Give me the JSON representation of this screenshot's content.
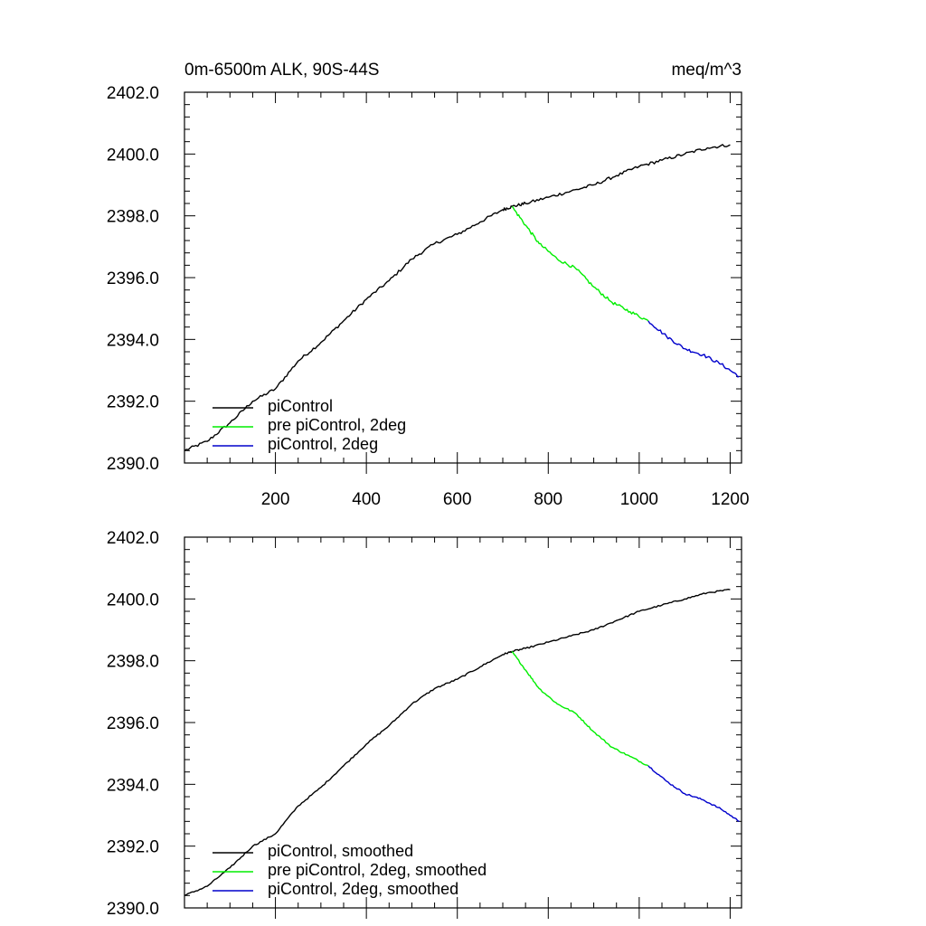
{
  "colors": {
    "picontrol": "#000000",
    "pre_picontrol_2deg": "#00ee00",
    "picontrol_2deg": "#0000cc",
    "axes": "#000000",
    "background": "#ffffff"
  },
  "chart_data": [
    {
      "type": "line",
      "title": "0m-6500m ALK, 90S-44S",
      "units": "meq/m^3",
      "xlim": [
        0,
        1225
      ],
      "ylim": [
        2390.0,
        2402.0
      ],
      "x_ticks": [
        200,
        400,
        600,
        800,
        1000,
        1200
      ],
      "x_tick_labels": [
        "200",
        "400",
        "600",
        "800",
        "1000",
        "1200"
      ],
      "y_ticks": [
        2390.0,
        2392.0,
        2394.0,
        2396.0,
        2398.0,
        2400.0,
        2402.0
      ],
      "y_tick_labels": [
        "2390.0",
        "2392.0",
        "2394.0",
        "2396.0",
        "2398.0",
        "2400.0",
        "2402.0"
      ],
      "grid": false,
      "legend_position": "bottom-left",
      "series": [
        {
          "name": "piControl",
          "color": "#000000",
          "x": [
            0,
            50,
            100,
            150,
            200,
            250,
            300,
            350,
            400,
            450,
            500,
            550,
            600,
            650,
            700,
            720,
            750,
            800,
            850,
            900,
            950,
            1000,
            1050,
            1100,
            1150,
            1200
          ],
          "y": [
            2390.4,
            2390.7,
            2391.3,
            2392.0,
            2392.4,
            2393.3,
            2393.9,
            2394.6,
            2395.3,
            2395.9,
            2396.6,
            2397.1,
            2397.4,
            2397.8,
            2398.2,
            2398.3,
            2398.4,
            2398.6,
            2398.8,
            2399.0,
            2399.3,
            2399.6,
            2399.8,
            2400.0,
            2400.2,
            2400.3
          ]
        },
        {
          "name": "pre piControl, 2deg",
          "color": "#00ee00",
          "x": [
            720,
            750,
            780,
            820,
            860,
            900,
            940,
            980,
            1020
          ],
          "y": [
            2398.3,
            2397.7,
            2397.1,
            2396.6,
            2396.3,
            2395.7,
            2395.2,
            2394.9,
            2394.6
          ]
        },
        {
          "name": "piControl, 2deg",
          "color": "#0000cc",
          "x": [
            1020,
            1060,
            1100,
            1140,
            1180,
            1220
          ],
          "y": [
            2394.6,
            2394.1,
            2393.7,
            2393.5,
            2393.2,
            2392.8
          ]
        }
      ]
    },
    {
      "type": "line",
      "xlim": [
        0,
        1225
      ],
      "ylim": [
        2390.0,
        2402.0
      ],
      "x_ticks": [
        200,
        400,
        600,
        800,
        1000,
        1200
      ],
      "y_ticks": [
        2390.0,
        2392.0,
        2394.0,
        2396.0,
        2398.0,
        2400.0,
        2402.0
      ],
      "y_tick_labels": [
        "2390.0",
        "2392.0",
        "2394.0",
        "2396.0",
        "2398.0",
        "2400.0",
        "2402.0"
      ],
      "grid": false,
      "legend_position": "bottom-left",
      "series": [
        {
          "name": "piControl, smoothed",
          "color": "#000000",
          "x": [
            0,
            50,
            100,
            150,
            200,
            250,
            300,
            350,
            400,
            450,
            500,
            550,
            600,
            650,
            700,
            720,
            750,
            800,
            850,
            900,
            950,
            1000,
            1050,
            1100,
            1150,
            1200
          ],
          "y": [
            2390.4,
            2390.7,
            2391.3,
            2392.0,
            2392.4,
            2393.3,
            2393.9,
            2394.6,
            2395.3,
            2395.9,
            2396.6,
            2397.1,
            2397.4,
            2397.8,
            2398.2,
            2398.3,
            2398.4,
            2398.6,
            2398.8,
            2399.0,
            2399.3,
            2399.6,
            2399.8,
            2400.0,
            2400.2,
            2400.3
          ]
        },
        {
          "name": "pre piControl, 2deg, smoothed",
          "color": "#00ee00",
          "x": [
            720,
            750,
            780,
            820,
            860,
            900,
            940,
            980,
            1020
          ],
          "y": [
            2398.3,
            2397.7,
            2397.1,
            2396.6,
            2396.3,
            2395.7,
            2395.2,
            2394.9,
            2394.6
          ]
        },
        {
          "name": "piControl, 2deg, smoothed",
          "color": "#0000cc",
          "x": [
            1020,
            1060,
            1100,
            1140,
            1180,
            1220
          ],
          "y": [
            2394.6,
            2394.1,
            2393.7,
            2393.5,
            2393.2,
            2392.8
          ]
        }
      ]
    }
  ]
}
